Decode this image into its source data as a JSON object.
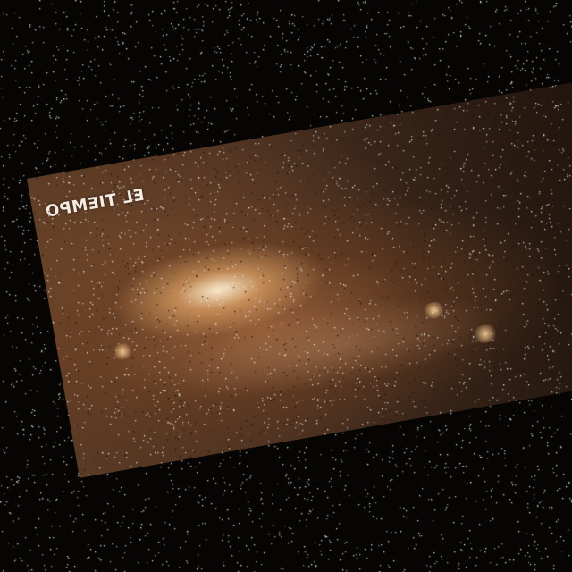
{
  "image": {
    "watermark_text": "EL TIEMPO",
    "background_color": "#060504",
    "frame_tint": "#5a3a24",
    "fire_glow_color": "#fff0d2"
  }
}
